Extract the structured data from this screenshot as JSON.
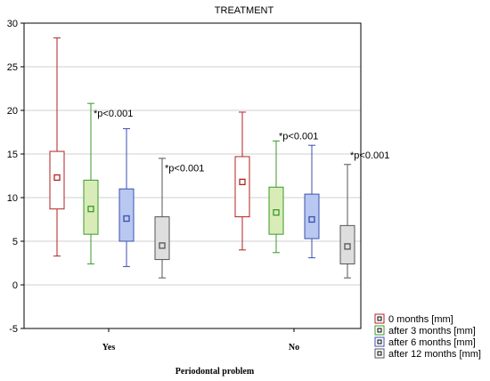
{
  "chart_data": {
    "type": "box",
    "title": "TREATMENT",
    "xlabel": "Periodontal problem",
    "ylabel": "",
    "ylim": [
      -5,
      30
    ],
    "yticks": [
      -5,
      0,
      5,
      10,
      15,
      20,
      25,
      30
    ],
    "categories": [
      "Yes",
      "No"
    ],
    "grid": true,
    "legend_position": "bottom-right",
    "series": [
      {
        "name": "0 months [mm]",
        "color": "#b22222",
        "fill": "#ffffff",
        "boxes": [
          {
            "category": "Yes",
            "min": 3.3,
            "q1": 8.7,
            "median": 12.3,
            "q3": 15.3,
            "max": 28.3
          },
          {
            "category": "No",
            "min": 4.0,
            "q1": 7.8,
            "median": 11.8,
            "q3": 14.7,
            "max": 19.8
          }
        ]
      },
      {
        "name": "after 3 months [mm]",
        "color": "#3a9a2a",
        "fill": "#d9ecb8",
        "boxes": [
          {
            "category": "Yes",
            "min": 2.4,
            "q1": 5.8,
            "median": 8.7,
            "q3": 12.0,
            "max": 20.8
          },
          {
            "category": "No",
            "min": 3.7,
            "q1": 5.8,
            "median": 8.3,
            "q3": 11.2,
            "max": 16.5
          }
        ]
      },
      {
        "name": "after 6 months [mm]",
        "color": "#3b4fb0",
        "fill": "#b8c8f0",
        "boxes": [
          {
            "category": "Yes",
            "min": 2.1,
            "q1": 5.0,
            "median": 7.6,
            "q3": 11.0,
            "max": 17.9
          },
          {
            "category": "No",
            "min": 3.1,
            "q1": 5.3,
            "median": 7.5,
            "q3": 10.4,
            "max": 16.0
          }
        ]
      },
      {
        "name": "after 12 months [mm]",
        "color": "#555555",
        "fill": "#dedede",
        "boxes": [
          {
            "category": "Yes",
            "min": 0.8,
            "q1": 2.9,
            "median": 4.5,
            "q3": 7.8,
            "max": 14.5
          },
          {
            "category": "No",
            "min": 0.8,
            "q1": 2.4,
            "median": 4.4,
            "q3": 6.8,
            "max": 13.8
          }
        ]
      }
    ],
    "annotations": [
      {
        "text": "*p<0.001",
        "category": "Yes",
        "series": 1,
        "y": 19.3
      },
      {
        "text": "*p<0.001",
        "category": "Yes",
        "series": 3,
        "y": 13.0
      },
      {
        "text": "*p<0.001",
        "category": "No",
        "series": 1,
        "y": 16.7
      },
      {
        "text": "*p<0.001",
        "category": "No",
        "series": 3,
        "y": 14.5
      }
    ]
  }
}
